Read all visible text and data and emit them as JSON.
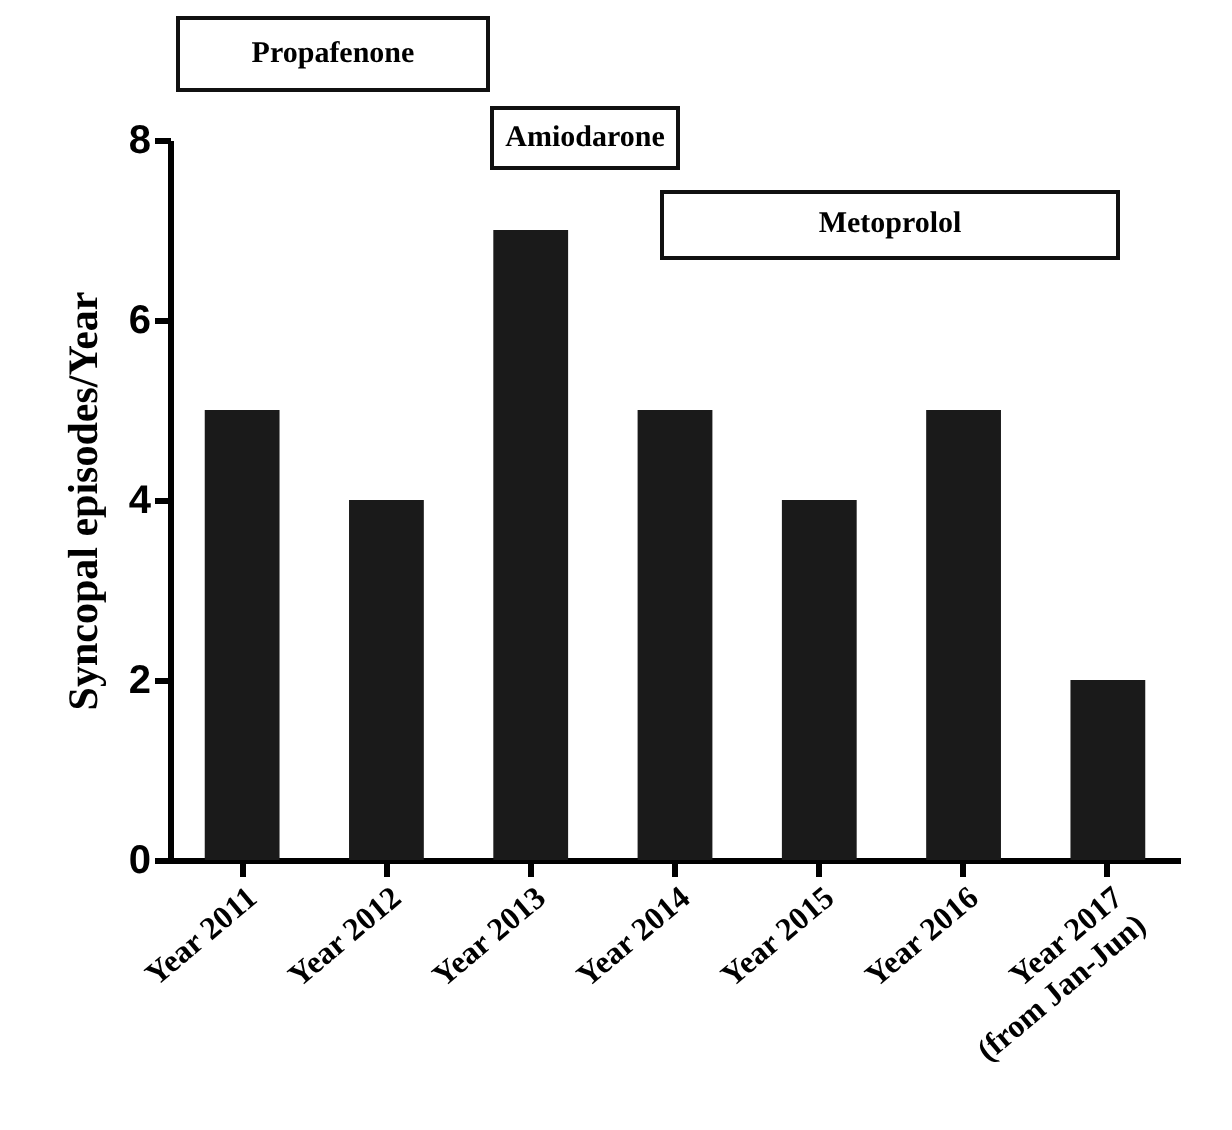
{
  "chart_data": {
    "type": "bar",
    "ylabel": "Syncopal episodes/Year",
    "categories": [
      "Year 2011",
      "Year 2012",
      "Year 2013",
      "Year 2014",
      "Year 2015",
      "Year 2016",
      "Year 2017\n(from Jan-Jun)"
    ],
    "values": [
      5,
      4,
      7,
      5,
      4,
      5,
      2
    ],
    "color": "#1a1a1a",
    "ylim": [
      0,
      8
    ],
    "yticks": [
      0,
      2,
      4,
      6,
      8
    ],
    "grid": false,
    "annotations": [
      "Propafenone",
      "Amiodarone",
      "Metoprolol"
    ]
  }
}
